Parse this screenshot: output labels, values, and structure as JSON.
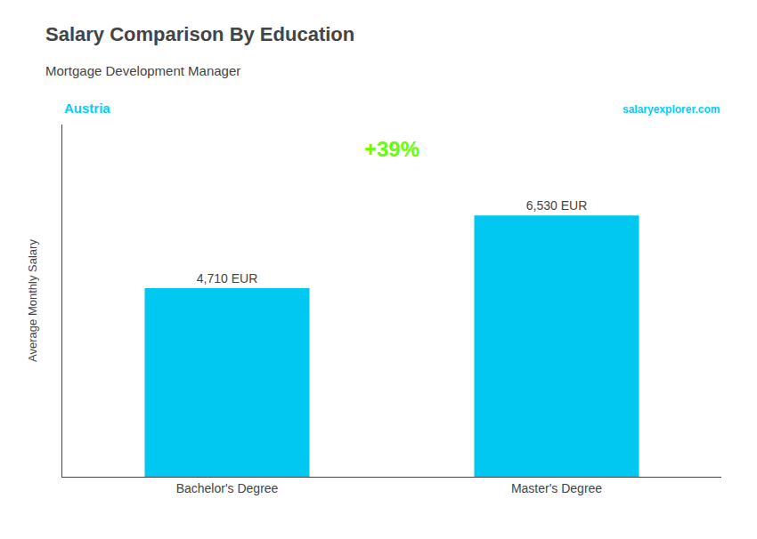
{
  "chart_data": {
    "type": "bar",
    "title": "Salary Comparison By Education",
    "subtitle": "Mortgage Development Manager",
    "categories": [
      "Bachelor's Degree",
      "Master's Degree"
    ],
    "values": [
      4710,
      6530
    ],
    "value_labels": [
      "4,710 EUR",
      "6,530 EUR"
    ],
    "data_labels": true,
    "color": "#00c8f0",
    "ylim": [
      0,
      8800
    ],
    "tick_labels": "x",
    "grid": false,
    "ylabel": "Average Monthly Salary",
    "annotations": [
      {
        "text": "+39%",
        "color": "#66ff00"
      },
      {
        "text": "Austria",
        "color": "#00cfff"
      },
      {
        "text": "salaryexplorer.com",
        "color": "#00cfff"
      }
    ]
  }
}
